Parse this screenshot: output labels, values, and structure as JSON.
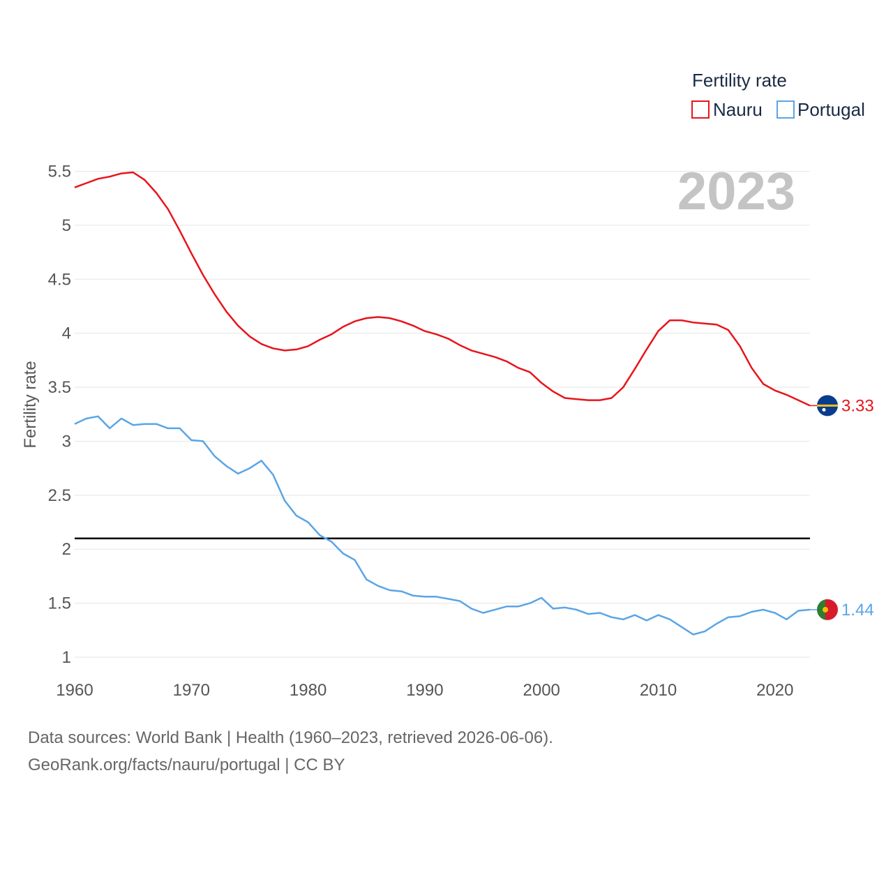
{
  "chart_data": {
    "type": "line",
    "year_display": "2023",
    "ylabel": "Fertility rate",
    "ylim": [
      1,
      5.5
    ],
    "xlim": [
      1960,
      2023
    ],
    "y_ticks": [
      "1",
      "1.5",
      "2",
      "2.5",
      "3",
      "3.5",
      "4",
      "4.5",
      "5",
      "5.5"
    ],
    "x_ticks": [
      "1960",
      "1970",
      "1980",
      "1990",
      "2000",
      "2010",
      "2020"
    ],
    "reference_line": 2.1,
    "legend": {
      "title": "Fertility rate",
      "placement": "top-right",
      "entries": [
        "Nauru",
        "Portugal"
      ]
    },
    "series": [
      {
        "name": "Nauru",
        "color": "#e8141c",
        "end_label": "3.33",
        "flag": "nauru-flag",
        "x": [
          1960,
          1961,
          1962,
          1963,
          1964,
          1965,
          1966,
          1967,
          1968,
          1969,
          1970,
          1971,
          1972,
          1973,
          1974,
          1975,
          1976,
          1977,
          1978,
          1979,
          1980,
          1981,
          1982,
          1983,
          1984,
          1985,
          1986,
          1987,
          1988,
          1989,
          1990,
          1991,
          1992,
          1993,
          1994,
          1995,
          1996,
          1997,
          1998,
          1999,
          2000,
          2001,
          2002,
          2003,
          2004,
          2005,
          2006,
          2007,
          2008,
          2009,
          2010,
          2011,
          2012,
          2013,
          2014,
          2015,
          2016,
          2017,
          2018,
          2019,
          2020,
          2021,
          2022,
          2023
        ],
        "values": [
          5.35,
          5.39,
          5.43,
          5.45,
          5.48,
          5.49,
          5.42,
          5.3,
          5.15,
          4.95,
          4.74,
          4.54,
          4.36,
          4.2,
          4.07,
          3.97,
          3.9,
          3.86,
          3.84,
          3.85,
          3.88,
          3.94,
          3.99,
          4.06,
          4.11,
          4.14,
          4.15,
          4.14,
          4.11,
          4.07,
          4.02,
          3.99,
          3.95,
          3.89,
          3.84,
          3.81,
          3.78,
          3.74,
          3.68,
          3.64,
          3.54,
          3.46,
          3.4,
          3.39,
          3.38,
          3.38,
          3.4,
          3.5,
          3.67,
          3.85,
          4.02,
          4.12,
          4.12,
          4.1,
          4.09,
          4.08,
          4.03,
          3.88,
          3.68,
          3.53,
          3.47,
          3.43,
          3.38,
          3.33
        ]
      },
      {
        "name": "Portugal",
        "color": "#5aa5e6",
        "end_label": "1.44",
        "flag": "portugal-flag",
        "x": [
          1960,
          1961,
          1962,
          1963,
          1964,
          1965,
          1966,
          1967,
          1968,
          1969,
          1970,
          1971,
          1972,
          1973,
          1974,
          1975,
          1976,
          1977,
          1978,
          1979,
          1980,
          1981,
          1982,
          1983,
          1984,
          1985,
          1986,
          1987,
          1988,
          1989,
          1990,
          1991,
          1992,
          1993,
          1994,
          1995,
          1996,
          1997,
          1998,
          1999,
          2000,
          2001,
          2002,
          2003,
          2004,
          2005,
          2006,
          2007,
          2008,
          2009,
          2010,
          2011,
          2012,
          2013,
          2014,
          2015,
          2016,
          2017,
          2018,
          2019,
          2020,
          2021,
          2022,
          2023
        ],
        "values": [
          3.16,
          3.21,
          3.23,
          3.12,
          3.21,
          3.15,
          3.16,
          3.16,
          3.12,
          3.12,
          3.01,
          3.0,
          2.86,
          2.77,
          2.7,
          2.75,
          2.82,
          2.69,
          2.45,
          2.31,
          2.25,
          2.13,
          2.07,
          1.96,
          1.9,
          1.72,
          1.66,
          1.62,
          1.61,
          1.57,
          1.56,
          1.56,
          1.54,
          1.52,
          1.45,
          1.41,
          1.44,
          1.47,
          1.47,
          1.5,
          1.55,
          1.45,
          1.46,
          1.44,
          1.4,
          1.41,
          1.37,
          1.35,
          1.39,
          1.34,
          1.39,
          1.35,
          1.28,
          1.21,
          1.24,
          1.31,
          1.37,
          1.38,
          1.42,
          1.44,
          1.41,
          1.35,
          1.43,
          1.44
        ]
      }
    ]
  },
  "footer": {
    "line1": "Data sources: World Bank | Health (1960–2023, retrieved 2026-06-06).",
    "line2": "GeoRank.org/facts/nauru/portugal | CC BY"
  }
}
